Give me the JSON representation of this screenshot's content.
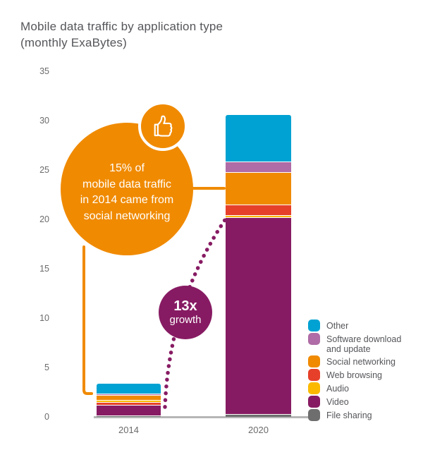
{
  "chart_data": {
    "type": "bar",
    "stacked": true,
    "title": "Mobile data traffic by application type",
    "subtitle": "(monthly ExaBytes)",
    "ylim": [
      0,
      35
    ],
    "y_ticks": [
      0,
      5,
      10,
      15,
      20,
      25,
      30,
      35
    ],
    "categories": [
      "2014",
      "2020"
    ],
    "grid": false,
    "legend_position": "right",
    "legend": [
      {
        "id": "other",
        "label": "Other",
        "color": "#00A2D3"
      },
      {
        "id": "software",
        "label": "Software download and update",
        "color": "#AF6CA6"
      },
      {
        "id": "social",
        "label": "Social networking",
        "color": "#F08A00"
      },
      {
        "id": "web",
        "label": "Web browsing",
        "color": "#E6402A"
      },
      {
        "id": "audio",
        "label": "Audio",
        "color": "#FBBA00"
      },
      {
        "id": "video",
        "label": "Video",
        "color": "#871B63"
      },
      {
        "id": "file",
        "label": "File sharing",
        "color": "#6E6E6E"
      }
    ],
    "bars": [
      {
        "category": "2014",
        "total": 3.35,
        "segments_bottom_to_top": [
          {
            "id": "file",
            "value": 0.15
          },
          {
            "id": "video",
            "value": 1.05
          },
          {
            "id": "web",
            "value": 0.3
          },
          {
            "id": "audio",
            "value": 0.2
          },
          {
            "id": "social",
            "value": 0.5
          },
          {
            "id": "software",
            "value": 0.15
          },
          {
            "id": "other",
            "value": 1.0
          }
        ]
      },
      {
        "category": "2020",
        "total": 30.55,
        "segments_bottom_to_top": [
          {
            "id": "file",
            "value": 0.3
          },
          {
            "id": "video",
            "value": 19.9
          },
          {
            "id": "audio",
            "value": 0.25
          },
          {
            "id": "web",
            "value": 1.05
          },
          {
            "id": "social",
            "value": 3.3
          },
          {
            "id": "software",
            "value": 1.05
          },
          {
            "id": "other",
            "value": 4.7
          }
        ]
      }
    ],
    "annotations": {
      "social_callout": {
        "lines": [
          "15% of",
          "mobile data traffic",
          "in 2014 came from",
          "social networking"
        ],
        "badge_icon": "thumbs-up-icon",
        "color": "#F08A00",
        "points_to": [
          "2014",
          "2020"
        ]
      },
      "growth_callout": {
        "value": "13x",
        "label": "growth",
        "color": "#871B63"
      }
    }
  }
}
